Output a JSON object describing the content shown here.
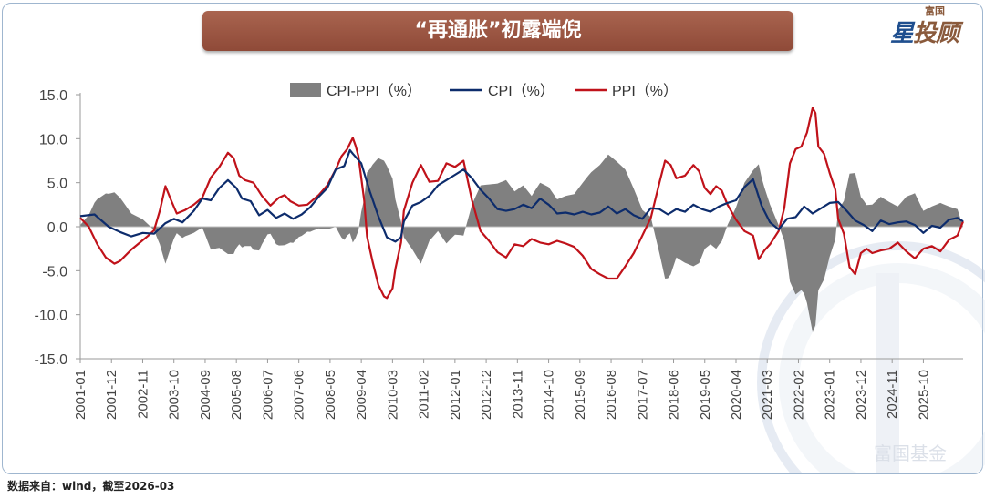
{
  "title": "“再通胀”初露端倪",
  "logo": {
    "sub": "富国",
    "main_a": "星",
    "main_b": "投顾"
  },
  "watermark": "富国基金",
  "source": "数据来自：wind，截至2026-03",
  "colors": {
    "spread": "#808080",
    "cpi": "#0d2c6c",
    "ppi": "#c0121a",
    "axis": "#9a9a9a"
  },
  "chart_data": {
    "type": "area+line",
    "title": "“再通胀”初露端倪",
    "ylim": [
      -15,
      15
    ],
    "yticks": [
      "15.0",
      "10.0",
      "5.0",
      "0.0",
      "-5.0",
      "-10.0",
      "-15.0"
    ],
    "ytick_values": [
      15,
      10,
      5,
      0,
      -5,
      -10,
      -15
    ],
    "xticks": [
      "2001-01",
      "2001-12",
      "2002-11",
      "2003-10",
      "2004-09",
      "2005-08",
      "2006-07",
      "2007-06",
      "2008-05",
      "2009-04",
      "2010-03",
      "2011-02",
      "2012-01",
      "2012-12",
      "2013-11",
      "2014-10",
      "2015-09",
      "2016-08",
      "2017-07",
      "2018-06",
      "2019-05",
      "2020-04",
      "2021-03",
      "2022-02",
      "2023-01",
      "2023-12",
      "2024-11",
      "2025-10"
    ],
    "xrange": [
      "2001-01",
      "2026-03"
    ],
    "legend": [
      "CPI-PPI（%）",
      "CPI（%）",
      "PPI（%）"
    ],
    "series": [
      {
        "name": "CPI（%）",
        "points": [
          [
            0,
            1.2
          ],
          [
            5,
            1.4
          ],
          [
            10,
            0.0
          ],
          [
            14,
            -0.6
          ],
          [
            18,
            -1.1
          ],
          [
            22,
            -0.7
          ],
          [
            26,
            -0.8
          ],
          [
            30,
            0.4
          ],
          [
            33,
            0.9
          ],
          [
            36,
            0.5
          ],
          [
            40,
            1.8
          ],
          [
            43,
            3.2
          ],
          [
            46,
            3.0
          ],
          [
            49,
            4.4
          ],
          [
            52,
            5.3
          ],
          [
            55,
            4.4
          ],
          [
            57,
            3.2
          ],
          [
            60,
            2.9
          ],
          [
            63,
            1.3
          ],
          [
            66,
            1.9
          ],
          [
            69,
            1.0
          ],
          [
            72,
            1.5
          ],
          [
            75,
            0.9
          ],
          [
            78,
            1.4
          ],
          [
            81,
            2.2
          ],
          [
            84,
            3.4
          ],
          [
            87,
            4.4
          ],
          [
            90,
            6.5
          ],
          [
            93,
            6.9
          ],
          [
            95,
            8.7
          ],
          [
            96,
            8.3
          ],
          [
            99,
            7.2
          ],
          [
            102,
            4.0
          ],
          [
            105,
            1.2
          ],
          [
            108,
            -1.2
          ],
          [
            111,
            -1.7
          ],
          [
            113,
            -1.2
          ],
          [
            114,
            0.6
          ],
          [
            117,
            2.4
          ],
          [
            120,
            2.8
          ],
          [
            123,
            3.5
          ],
          [
            126,
            4.7
          ],
          [
            129,
            5.3
          ],
          [
            132,
            5.9
          ],
          [
            135,
            6.5
          ],
          [
            138,
            5.5
          ],
          [
            141,
            4.2
          ],
          [
            144,
            3.2
          ],
          [
            147,
            2.0
          ],
          [
            150,
            1.8
          ],
          [
            153,
            2.0
          ],
          [
            156,
            2.5
          ],
          [
            159,
            2.1
          ],
          [
            162,
            3.2
          ],
          [
            165,
            2.5
          ],
          [
            168,
            1.5
          ],
          [
            171,
            1.6
          ],
          [
            174,
            1.4
          ],
          [
            177,
            1.7
          ],
          [
            180,
            1.4
          ],
          [
            183,
            1.6
          ],
          [
            186,
            2.3
          ],
          [
            189,
            1.5
          ],
          [
            192,
            2.0
          ],
          [
            195,
            1.3
          ],
          [
            198,
            0.9
          ],
          [
            201,
            2.1
          ],
          [
            204,
            2.0
          ],
          [
            207,
            1.4
          ],
          [
            210,
            2.0
          ],
          [
            213,
            1.7
          ],
          [
            216,
            2.5
          ],
          [
            219,
            2.0
          ],
          [
            222,
            1.7
          ],
          [
            225,
            2.3
          ],
          [
            228,
            2.7
          ],
          [
            231,
            3.0
          ],
          [
            234,
            4.5
          ],
          [
            237,
            5.4
          ],
          [
            238,
            4.4
          ],
          [
            240,
            2.4
          ],
          [
            243,
            0.5
          ],
          [
            246,
            -0.3
          ],
          [
            249,
            0.9
          ],
          [
            252,
            1.1
          ],
          [
            255,
            2.3
          ],
          [
            258,
            1.5
          ],
          [
            261,
            2.1
          ],
          [
            264,
            2.7
          ],
          [
            267,
            2.8
          ],
          [
            270,
            1.8
          ],
          [
            273,
            0.7
          ],
          [
            276,
            0.2
          ],
          [
            279,
            -0.5
          ],
          [
            282,
            0.7
          ],
          [
            285,
            0.3
          ],
          [
            288,
            0.5
          ],
          [
            291,
            0.6
          ],
          [
            294,
            0.2
          ],
          [
            297,
            -0.7
          ],
          [
            300,
            0.1
          ],
          [
            303,
            -0.1
          ],
          [
            306,
            0.8
          ],
          [
            309,
            1.0
          ],
          [
            311,
            0.6
          ]
        ]
      },
      {
        "name": "PPI（%）",
        "points": [
          [
            0,
            1.0
          ],
          [
            3,
            0.0
          ],
          [
            6,
            -2.0
          ],
          [
            9,
            -3.5
          ],
          [
            12,
            -4.2
          ],
          [
            14,
            -3.9
          ],
          [
            18,
            -2.6
          ],
          [
            21,
            -1.8
          ],
          [
            24,
            -1.0
          ],
          [
            26,
            -0.4
          ],
          [
            28,
            1.8
          ],
          [
            30,
            4.6
          ],
          [
            32,
            3.0
          ],
          [
            34,
            1.5
          ],
          [
            37,
            1.9
          ],
          [
            40,
            2.5
          ],
          [
            43,
            3.3
          ],
          [
            46,
            5.6
          ],
          [
            49,
            6.8
          ],
          [
            52,
            8.4
          ],
          [
            54,
            7.8
          ],
          [
            56,
            5.8
          ],
          [
            58,
            5.3
          ],
          [
            61,
            5.0
          ],
          [
            64,
            3.5
          ],
          [
            67,
            2.4
          ],
          [
            70,
            3.3
          ],
          [
            72,
            3.6
          ],
          [
            74,
            2.9
          ],
          [
            77,
            2.4
          ],
          [
            80,
            2.5
          ],
          [
            84,
            3.6
          ],
          [
            87,
            4.7
          ],
          [
            90,
            6.5
          ],
          [
            92,
            8.0
          ],
          [
            94,
            8.8
          ],
          [
            96,
            10.1
          ],
          [
            97,
            9.2
          ],
          [
            98,
            8.0
          ],
          [
            100,
            3.0
          ],
          [
            101,
            -1.1
          ],
          [
            103,
            -4.0
          ],
          [
            105,
            -6.6
          ],
          [
            107,
            -7.9
          ],
          [
            108,
            -8.1
          ],
          [
            110,
            -7.0
          ],
          [
            111,
            -4.8
          ],
          [
            113,
            -1.8
          ],
          [
            114,
            1.8
          ],
          [
            117,
            5.0
          ],
          [
            120,
            7.0
          ],
          [
            123,
            5.1
          ],
          [
            126,
            5.2
          ],
          [
            129,
            7.2
          ],
          [
            132,
            6.8
          ],
          [
            135,
            7.5
          ],
          [
            136,
            6.0
          ],
          [
            138,
            3.0
          ],
          [
            141,
            -0.5
          ],
          [
            144,
            -1.6
          ],
          [
            147,
            -2.9
          ],
          [
            150,
            -3.5
          ],
          [
            153,
            -2.0
          ],
          [
            156,
            -2.2
          ],
          [
            159,
            -1.4
          ],
          [
            162,
            -1.8
          ],
          [
            165,
            -2.0
          ],
          [
            168,
            -1.6
          ],
          [
            171,
            -1.9
          ],
          [
            174,
            -2.3
          ],
          [
            177,
            -3.3
          ],
          [
            180,
            -4.8
          ],
          [
            183,
            -5.4
          ],
          [
            186,
            -5.9
          ],
          [
            189,
            -5.9
          ],
          [
            192,
            -4.5
          ],
          [
            195,
            -3.0
          ],
          [
            198,
            -1.0
          ],
          [
            201,
            1.0
          ],
          [
            204,
            5.0
          ],
          [
            206,
            7.5
          ],
          [
            208,
            7.0
          ],
          [
            210,
            5.5
          ],
          [
            213,
            5.8
          ],
          [
            216,
            7.0
          ],
          [
            218,
            6.3
          ],
          [
            220,
            4.4
          ],
          [
            222,
            3.7
          ],
          [
            224,
            4.6
          ],
          [
            226,
            4.1
          ],
          [
            228,
            2.5
          ],
          [
            231,
            0.8
          ],
          [
            234,
            -0.5
          ],
          [
            237,
            -1.0
          ],
          [
            239,
            -3.7
          ],
          [
            241,
            -2.7
          ],
          [
            243,
            -2.0
          ],
          [
            246,
            -0.5
          ],
          [
            248,
            2.1
          ],
          [
            250,
            7.2
          ],
          [
            252,
            8.8
          ],
          [
            254,
            9.1
          ],
          [
            256,
            10.7
          ],
          [
            258,
            13.5
          ],
          [
            259,
            12.9
          ],
          [
            260,
            9.1
          ],
          [
            262,
            8.3
          ],
          [
            264,
            6.1
          ],
          [
            266,
            4.2
          ],
          [
            267,
            0.9
          ],
          [
            269,
            -0.8
          ],
          [
            271,
            -4.6
          ],
          [
            273,
            -5.4
          ],
          [
            275,
            -3.0
          ],
          [
            277,
            -2.5
          ],
          [
            279,
            -3.0
          ],
          [
            282,
            -2.7
          ],
          [
            285,
            -2.5
          ],
          [
            288,
            -1.8
          ],
          [
            291,
            -2.8
          ],
          [
            294,
            -3.6
          ],
          [
            297,
            -2.5
          ],
          [
            300,
            -2.2
          ],
          [
            303,
            -2.8
          ],
          [
            306,
            -1.5
          ],
          [
            309,
            -1.0
          ],
          [
            311,
            0.6
          ]
        ]
      }
    ]
  }
}
